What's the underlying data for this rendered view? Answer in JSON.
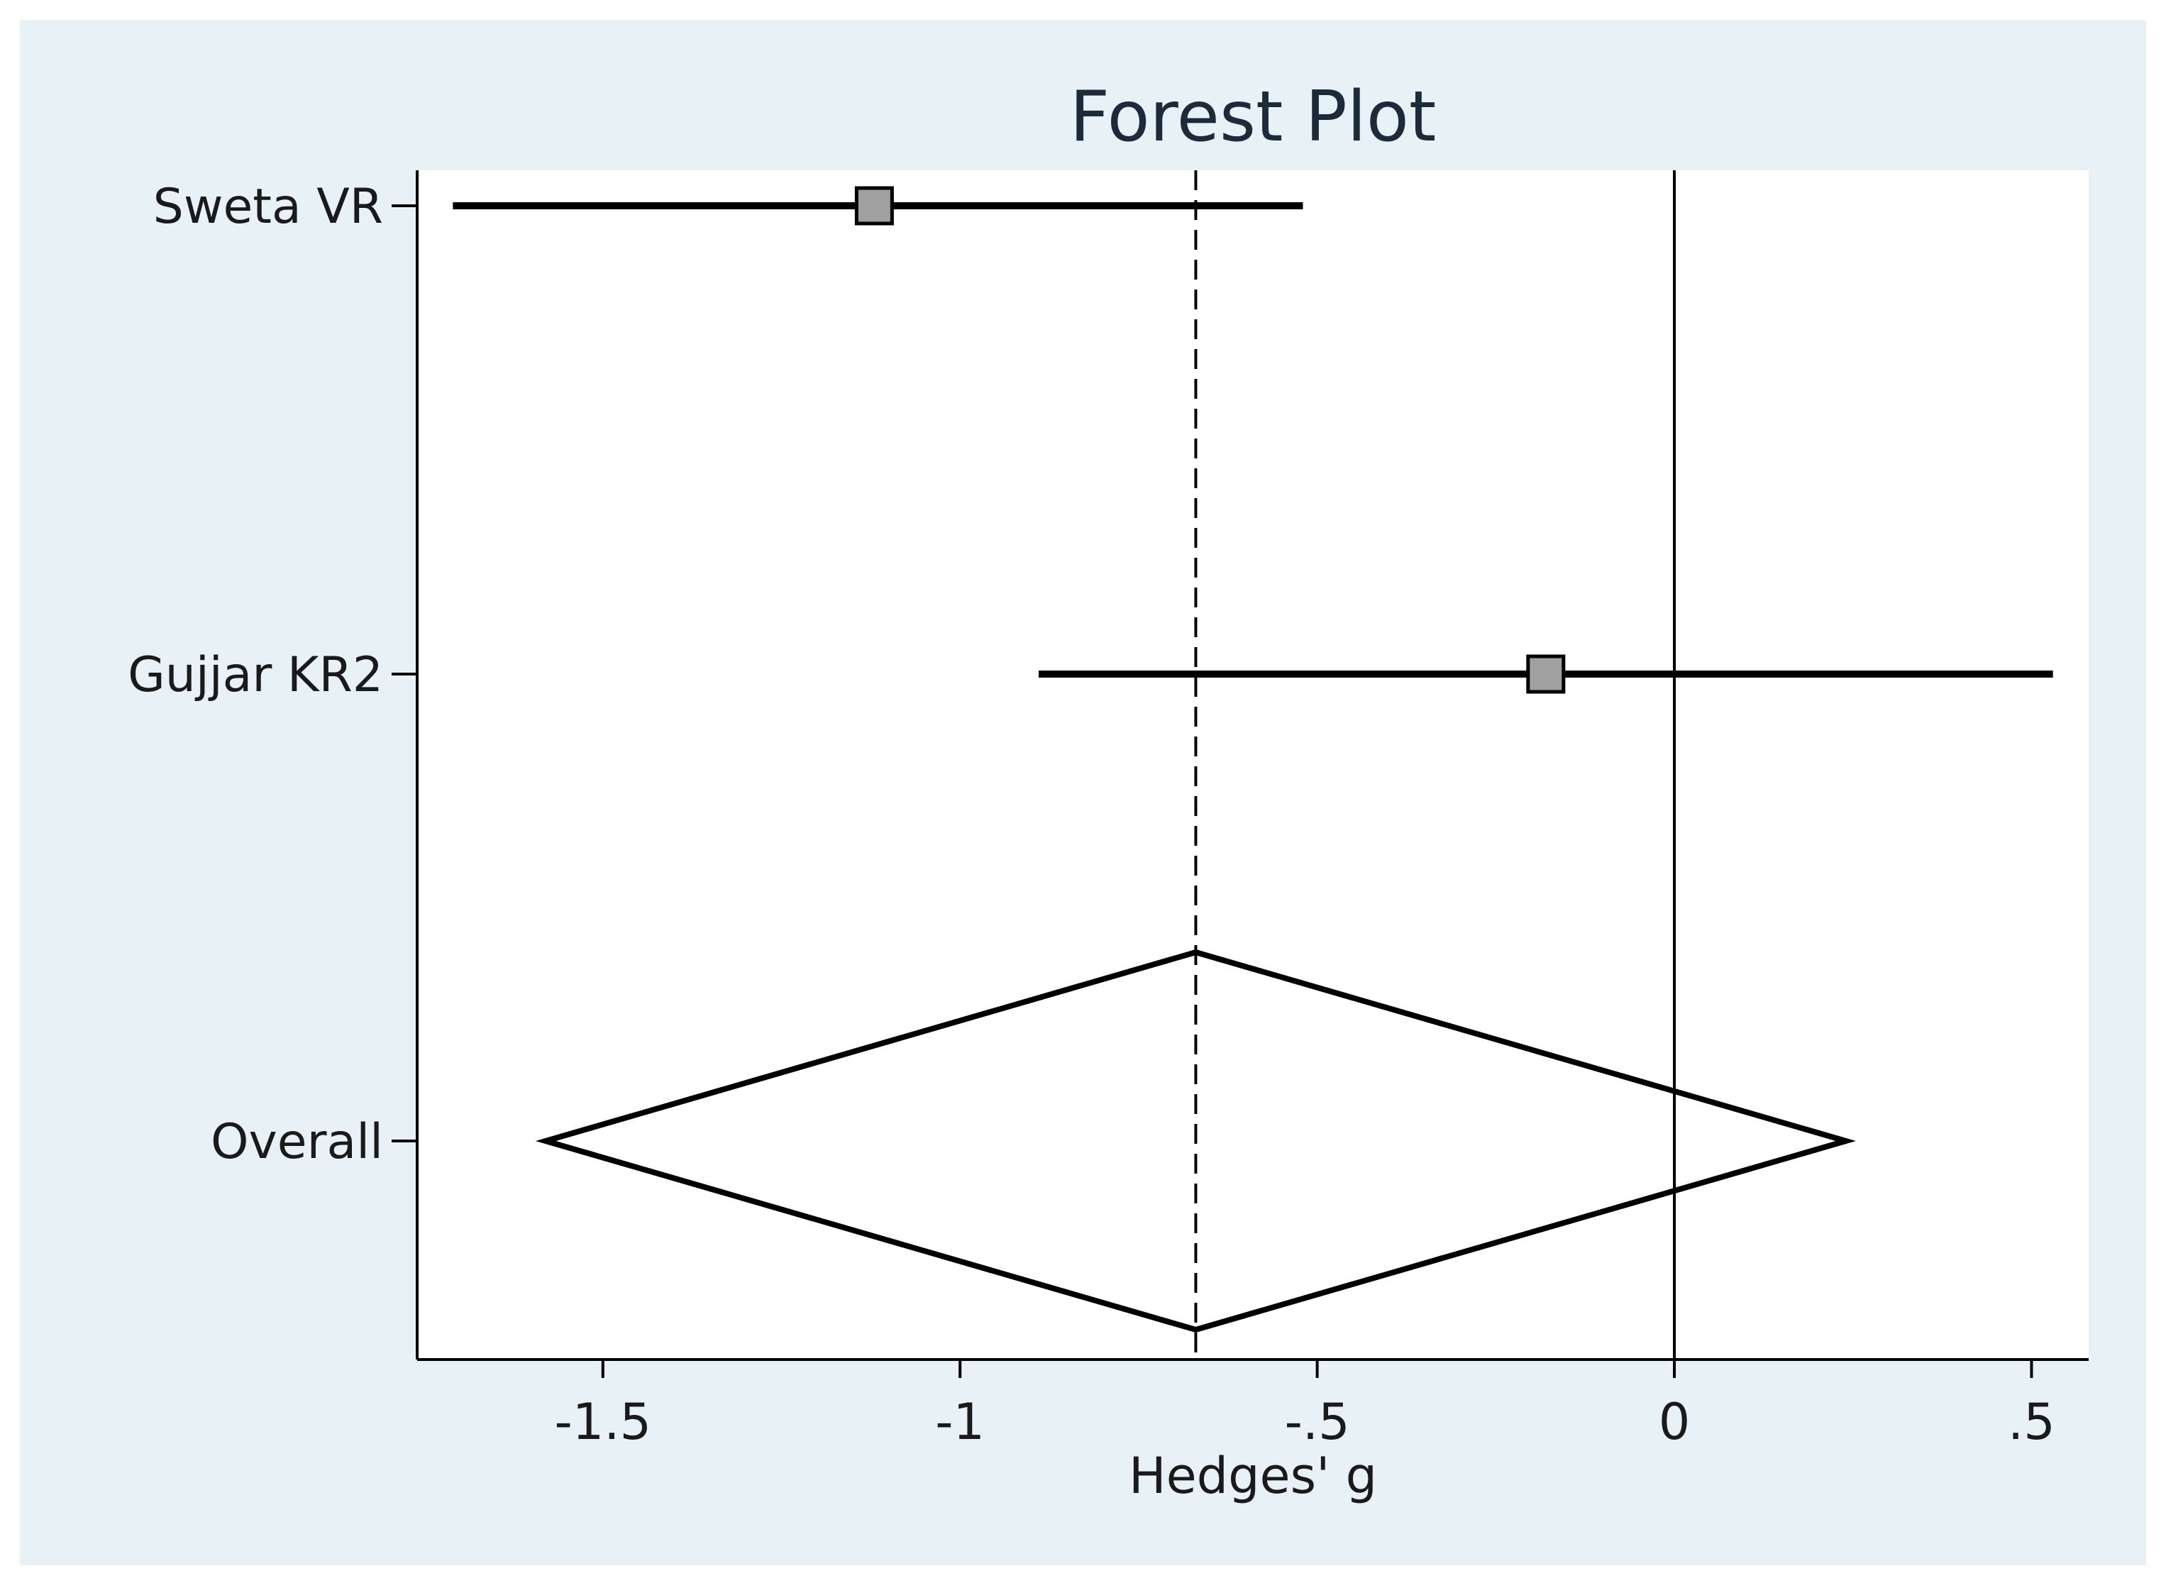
{
  "colors": {
    "outer_background": "#e8f1f6",
    "plot_background": "#ffffff",
    "line": "#000000",
    "marker_fill": "#a0a0a0"
  },
  "chart_data": {
    "type": "forest",
    "title": "Forest Plot",
    "xlabel": "Hedges' g",
    "ylabel": "",
    "xlim": [
      -1.76,
      0.58
    ],
    "xticks": [
      -1.5,
      -1,
      -0.5,
      0,
      0.5
    ],
    "xtick_labels": [
      "-1.5",
      "-1",
      "-.5",
      "0",
      ".5"
    ],
    "reference_line": 0,
    "pooled_estimate_line": -0.67,
    "studies": [
      {
        "label": "Sweta VR",
        "effect": -1.12,
        "ci_lower": -1.71,
        "ci_upper": -0.52
      },
      {
        "label": "Gujjar KR2",
        "effect": -0.18,
        "ci_lower": -0.89,
        "ci_upper": 0.53
      }
    ],
    "overall": {
      "label": "Overall",
      "effect": -0.67,
      "ci_lower": -1.58,
      "ci_upper": 0.24
    },
    "grid": false,
    "legend": "none"
  }
}
